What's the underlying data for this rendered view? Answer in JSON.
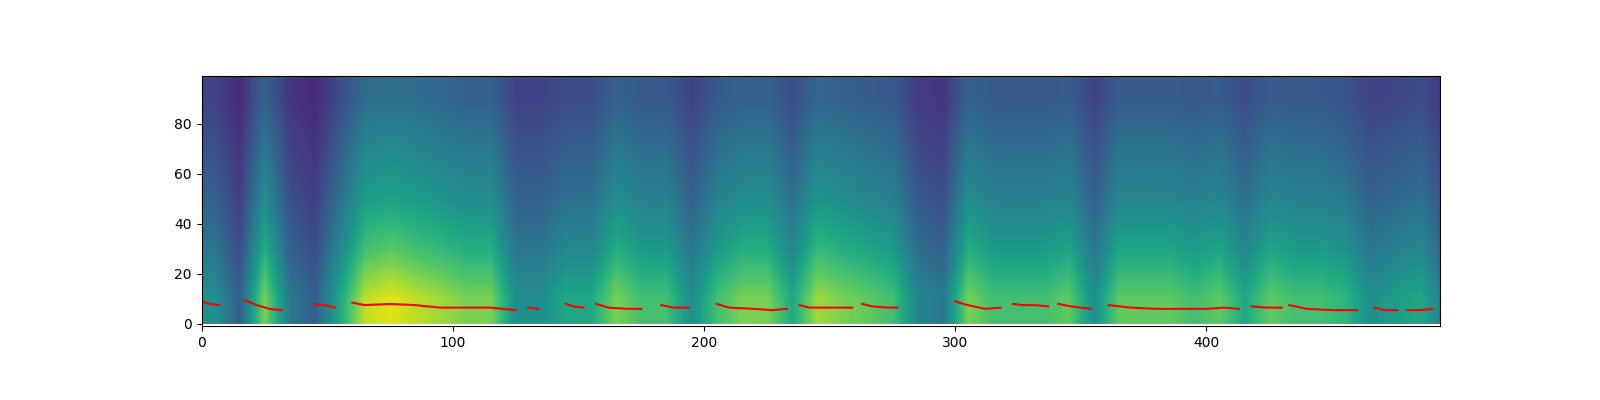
{
  "chart_data": {
    "type": "heatmap",
    "x_edges": [
      0,
      10,
      20,
      30,
      40,
      50,
      60,
      70,
      80,
      90,
      100,
      110,
      120,
      130,
      140,
      150,
      160,
      170,
      180,
      190,
      200,
      210,
      220,
      230,
      240,
      250,
      260,
      270,
      280,
      290,
      300,
      310,
      320,
      330,
      340,
      350,
      360,
      370,
      380,
      390,
      400,
      410,
      420,
      430,
      440,
      450,
      460,
      470,
      480,
      490,
      500
    ],
    "y_edges": [
      0,
      20,
      40,
      60,
      80,
      100
    ],
    "cells": [
      [
        45,
        27,
        72,
        36,
        27,
        54,
        81,
        86,
        81,
        77,
        72,
        72,
        45,
        45,
        54,
        54,
        72,
        63,
        63,
        45,
        63,
        72,
        72,
        54,
        77,
        72,
        68,
        63,
        41,
        36,
        72,
        63,
        63,
        63,
        68,
        45,
        68,
        68,
        68,
        63,
        68,
        54,
        68,
        63,
        63,
        59,
        45,
        50,
        54,
        36
      ],
      [
        35,
        21,
        56,
        28,
        21,
        42,
        63,
        67,
        63,
        60,
        56,
        56,
        35,
        35,
        42,
        42,
        56,
        49,
        49,
        35,
        49,
        56,
        56,
        42,
        60,
        56,
        53,
        49,
        32,
        28,
        56,
        49,
        49,
        49,
        53,
        35,
        53,
        53,
        53,
        49,
        53,
        42,
        53,
        49,
        49,
        46,
        35,
        39,
        42,
        28
      ],
      [
        28,
        17,
        44,
        22,
        17,
        33,
        50,
        52,
        50,
        47,
        44,
        44,
        28,
        28,
        33,
        33,
        44,
        39,
        39,
        28,
        39,
        44,
        44,
        33,
        47,
        44,
        41,
        39,
        25,
        22,
        44,
        39,
        39,
        39,
        41,
        28,
        41,
        41,
        41,
        39,
        41,
        33,
        41,
        39,
        39,
        36,
        28,
        30,
        33,
        22
      ],
      [
        23,
        14,
        36,
        18,
        14,
        27,
        41,
        43,
        41,
        38,
        36,
        36,
        23,
        23,
        27,
        27,
        36,
        32,
        32,
        23,
        32,
        36,
        36,
        27,
        38,
        36,
        34,
        32,
        20,
        18,
        36,
        32,
        32,
        32,
        34,
        23,
        34,
        34,
        34,
        32,
        34,
        27,
        34,
        32,
        32,
        29,
        23,
        25,
        27,
        18
      ],
      [
        18,
        11,
        28,
        14,
        11,
        21,
        32,
        33,
        32,
        30,
        28,
        28,
        18,
        18,
        21,
        21,
        28,
        25,
        25,
        18,
        25,
        28,
        28,
        21,
        30,
        28,
        26,
        25,
        16,
        14,
        28,
        25,
        25,
        25,
        26,
        18,
        26,
        26,
        26,
        25,
        26,
        21,
        26,
        25,
        25,
        23,
        18,
        19,
        21,
        14
      ]
    ],
    "clim": [
      0,
      90
    ],
    "xlim": [
      0,
      493
    ],
    "ylim": [
      -1,
      99
    ],
    "xticks": [
      0,
      100,
      200,
      300,
      400
    ],
    "yticks": [
      0,
      20,
      40,
      60,
      80
    ],
    "series": [
      {
        "type": "line",
        "color": "#ff0000",
        "x": [
          0,
          3,
          7,
          8,
          17,
          22,
          27,
          32,
          33,
          45,
          49,
          53,
          54,
          60,
          65,
          75,
          85,
          95,
          105,
          115,
          120,
          125,
          127,
          130,
          134,
          136,
          145,
          148,
          152,
          153,
          157,
          162,
          170,
          175,
          176,
          183,
          188,
          194,
          195,
          205,
          210,
          220,
          227,
          233,
          234,
          238,
          242,
          250,
          259,
          260,
          263,
          267,
          273,
          277,
          278,
          300,
          305,
          312,
          318,
          319,
          323,
          327,
          332,
          337,
          338,
          341,
          346,
          354,
          355,
          361,
          370,
          380,
          390,
          400,
          407,
          413,
          414,
          418,
          424,
          430,
          431,
          433,
          440,
          450,
          460,
          462,
          467,
          471,
          476,
          477,
          480,
          485,
          490
        ],
        "values": [
          9,
          8,
          7.5,
          null,
          9.5,
          7.5,
          6,
          5.5,
          null,
          8,
          7.5,
          6.5,
          null,
          8.5,
          7.5,
          8,
          7.5,
          6.5,
          6.5,
          6.5,
          6,
          5.5,
          null,
          6.5,
          6,
          null,
          8,
          7,
          6.5,
          null,
          8,
          6.5,
          6,
          6,
          null,
          7.5,
          6.5,
          6.5,
          null,
          8,
          6.5,
          6,
          5.5,
          6,
          null,
          7.5,
          6.5,
          6.5,
          6.5,
          null,
          8,
          7,
          6.5,
          6.5,
          null,
          9,
          7.5,
          6,
          6.5,
          null,
          8,
          7.5,
          7.5,
          7,
          null,
          8,
          7,
          6,
          null,
          7.5,
          6.5,
          6,
          6,
          6,
          6.5,
          6,
          null,
          7,
          6.5,
          6.5,
          null,
          7.5,
          6,
          5.5,
          5.5,
          null,
          6.5,
          5.5,
          5.5,
          null,
          5.5,
          5.5,
          6
        ]
      }
    ]
  }
}
